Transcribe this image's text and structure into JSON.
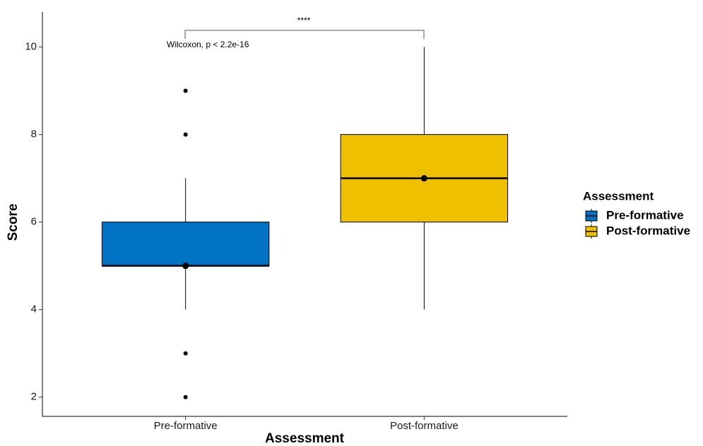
{
  "chart_data": {
    "type": "box",
    "x_label": "Assessment",
    "y_label": "Score",
    "categories": [
      "Pre-formative",
      "Post-formative"
    ],
    "legend_title": "Assessment",
    "legend_position": "right",
    "series": [
      {
        "name": "Pre-formative",
        "color": "#0072c3",
        "whisker_low": 4,
        "q1": 5,
        "median": 5,
        "q3": 6,
        "whisker_high": 7,
        "mean": 5,
        "outliers": [
          9,
          8,
          3,
          2
        ]
      },
      {
        "name": "Post-formative",
        "color": "#efc000",
        "whisker_low": 4,
        "q1": 6,
        "median": 7,
        "q3": 8,
        "whisker_high": 10,
        "mean": 7,
        "outliers": []
      }
    ],
    "annotations": {
      "significance": "****",
      "test": "Wilcoxon, p < 2.2e-16"
    },
    "ylim": [
      1.56,
      10.8
    ],
    "yticks": [
      2,
      4,
      6,
      8,
      10
    ],
    "grid": false
  }
}
